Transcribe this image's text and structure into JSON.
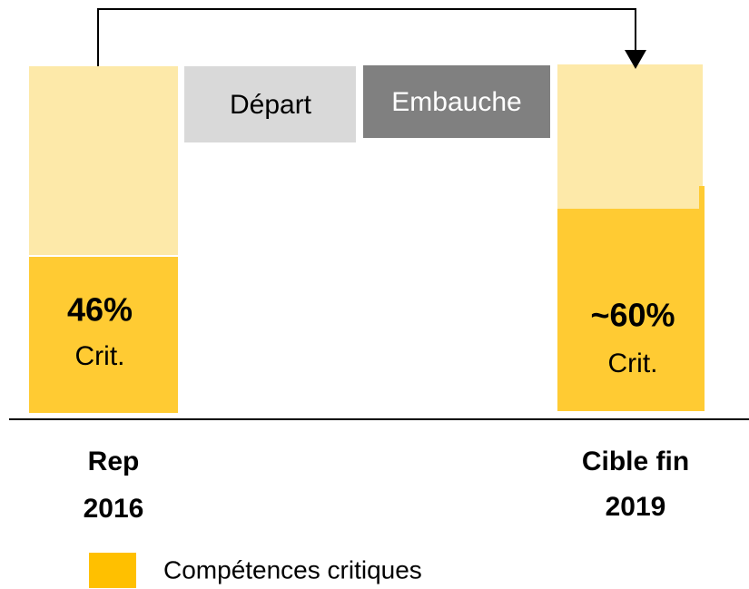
{
  "columns": [
    {
      "label_lines": [
        "Rep",
        "2016"
      ],
      "value": "46%",
      "caption": "Crit."
    },
    {
      "label_lines": [
        "Cible fin",
        "2019"
      ],
      "value": "~60%",
      "caption": "Crit."
    }
  ],
  "steps": [
    "Départ",
    "Embauche"
  ],
  "legend": "Compétences critiques"
}
